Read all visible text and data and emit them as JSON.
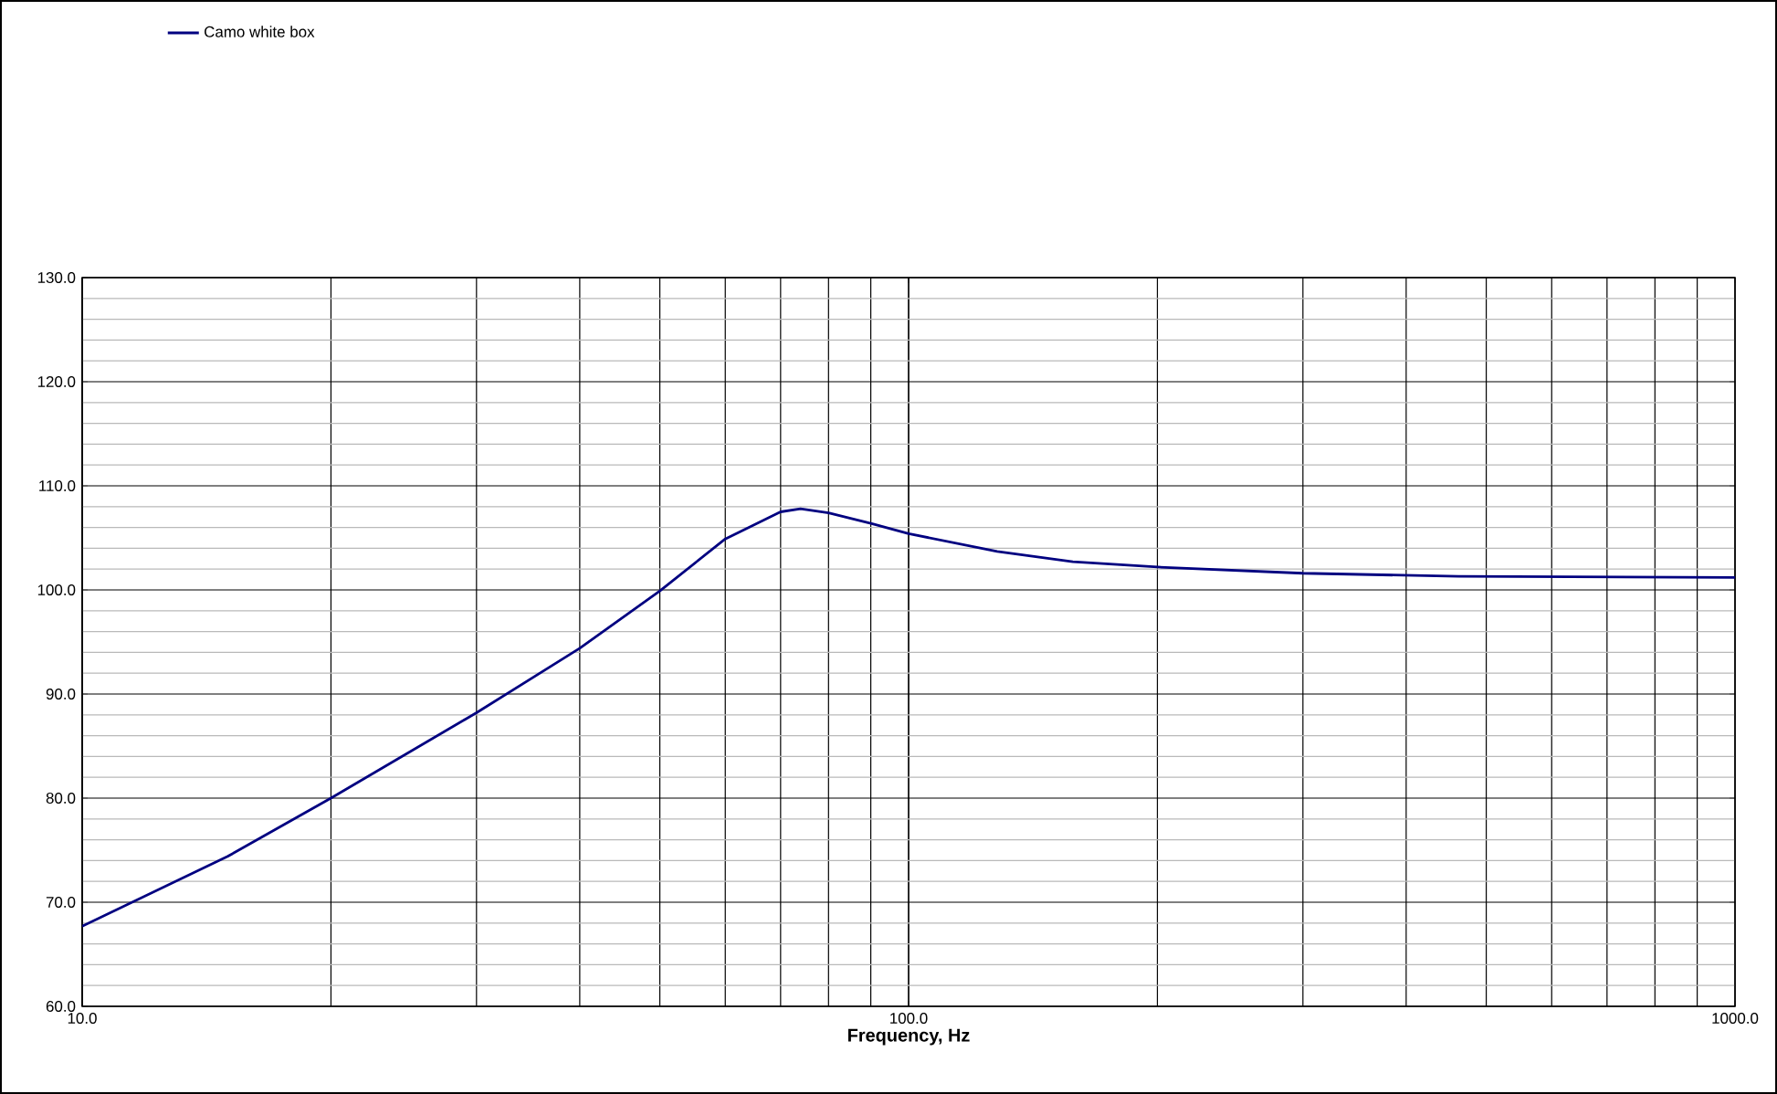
{
  "chart_data": {
    "type": "line",
    "xlabel": "Frequency, Hz",
    "log": "x",
    "grid": true,
    "legend": "top left",
    "xlim": [
      10,
      1000
    ],
    "xticks": [
      {
        "value": 10,
        "label": "10.0"
      },
      {
        "value": 100,
        "label": "100.0"
      },
      {
        "value": 1000,
        "label": "1000.0"
      }
    ],
    "ylim": [
      60,
      130
    ],
    "yticks": [
      {
        "value": 60,
        "label": "60.0"
      },
      {
        "value": 70,
        "label": "70.0"
      },
      {
        "value": 80,
        "label": "80.0"
      },
      {
        "value": 90,
        "label": "90.0"
      },
      {
        "value": 100,
        "label": "100.0"
      },
      {
        "value": 110,
        "label": "110.0"
      },
      {
        "value": 120,
        "label": "120.0"
      },
      {
        "value": 130,
        "label": "130.0"
      }
    ],
    "series": [
      {
        "name": "Camo white box",
        "color": "#000080",
        "x": [
          10,
          15,
          20,
          30,
          40,
          50,
          60,
          70,
          74,
          80,
          90,
          100,
          128,
          158,
          200,
          300,
          463,
          1000
        ],
        "values": [
          67.7,
          74.4,
          80.0,
          88.2,
          94.4,
          99.9,
          104.9,
          107.5,
          107.8,
          107.4,
          106.4,
          105.4,
          103.7,
          102.7,
          102.2,
          101.6,
          101.3,
          101.2
        ]
      }
    ]
  }
}
